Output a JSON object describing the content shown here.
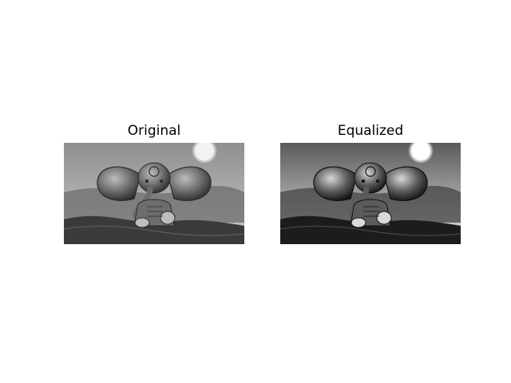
{
  "figure": {
    "panels": [
      {
        "title": "Original",
        "variant": "original",
        "palette": {
          "sky_top": "#8f8f8f",
          "sky_bottom": "#c9c9c9",
          "sun": "#f2f2f2",
          "water": "#6e6e6e",
          "ground": "#3a3a3a",
          "figure_dark": "#2b2b2b",
          "figure_mid": "#6d6d6d",
          "figure_light": "#bdbdbd"
        }
      },
      {
        "title": "Equalized",
        "variant": "equalized",
        "palette": {
          "sky_top": "#5a5a5a",
          "sky_bottom": "#e3e3e3",
          "sun": "#ffffff",
          "water": "#444444",
          "ground": "#1c1c1c",
          "figure_dark": "#101010",
          "figure_mid": "#5b5b5b",
          "figure_light": "#d8d8d8"
        }
      }
    ]
  }
}
